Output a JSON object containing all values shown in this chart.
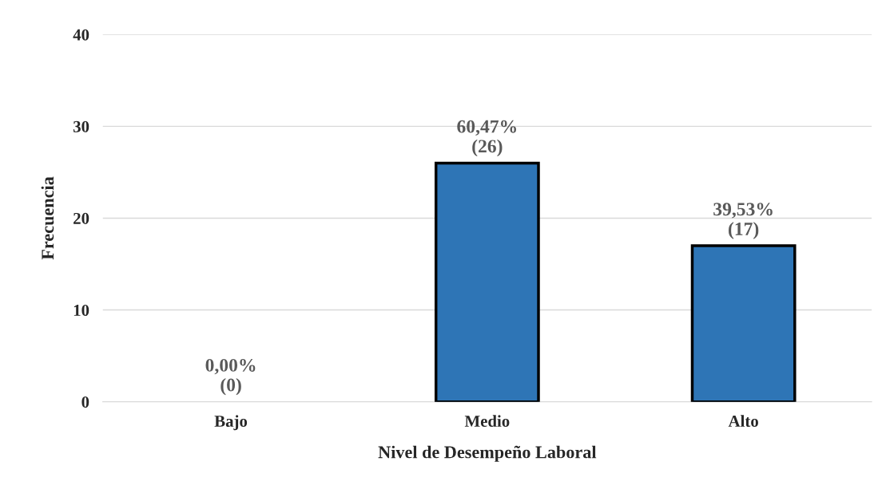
{
  "chart_data": {
    "type": "bar",
    "xlabel": "Nivel de Desempeño Laboral",
    "ylabel": "Frecuencia",
    "categories": [
      "Bajo",
      "Medio",
      "Alto"
    ],
    "values": [
      0,
      26,
      17
    ],
    "color": "#2e75b6",
    "value_labels": [
      "0,00%\n(0)",
      "60,47%\n(26)",
      "39,53%\n(17)"
    ],
    "ylim": [
      0,
      40
    ],
    "yticks": [
      0,
      10,
      20,
      30,
      40
    ],
    "grid": "y",
    "legend": false
  }
}
